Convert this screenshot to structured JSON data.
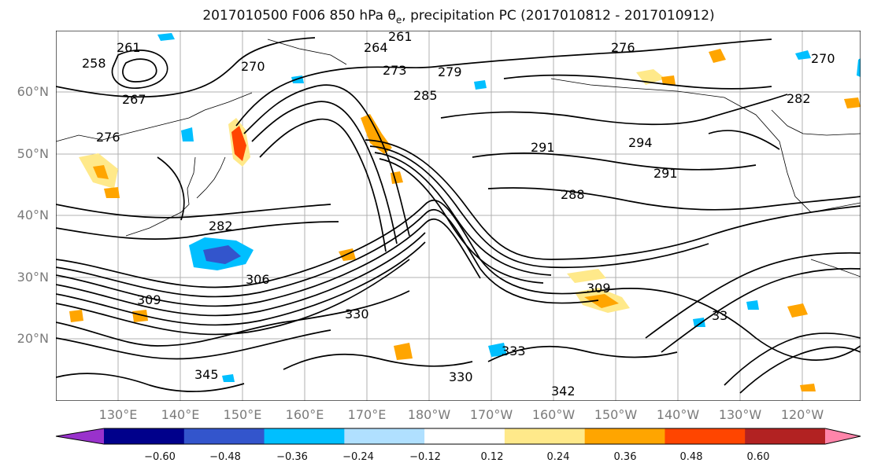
{
  "title_prefix": "2017010500 F006 850 hPa θ",
  "title_sub": "e",
  "title_suffix": ", precipitation PC (2017010812 - 2017010912)",
  "lat_labels": [
    "60°N",
    "50°N",
    "40°N",
    "30°N",
    "20°N"
  ],
  "lon_labels": [
    "130°E",
    "140°E",
    "150°E",
    "160°E",
    "170°E",
    "180°W",
    "170°W",
    "160°W",
    "150°W",
    "140°W",
    "130°W",
    "120°W"
  ],
  "contour_labels": [
    "261",
    "264",
    "261",
    "276",
    "258",
    "270",
    "273",
    "279",
    "285",
    "270",
    "267",
    "276",
    "282",
    "291",
    "294",
    "291",
    "288",
    "282",
    "306",
    "309",
    "330",
    "333",
    "309",
    "345",
    "342",
    "33",
    "330"
  ],
  "colorbar": {
    "ticks": [
      "−0.60",
      "−0.48",
      "−0.36",
      "−0.24",
      "−0.12",
      "0.12",
      "0.24",
      "0.36",
      "0.48",
      "0.60"
    ],
    "colors": [
      "#9932cc",
      "#00008b",
      "#3355cc",
      "#00bfff",
      "#b0e0ff",
      "#ffffff",
      "#ffe98a",
      "#ffa500",
      "#ff4500",
      "#b22222",
      "#ff85aa"
    ]
  },
  "colors": {
    "land_outline": "#000000",
    "grid": "#b0b0b0",
    "axis_text": "#7a7a7a",
    "positive_precip": "#ffa500",
    "negative_precip": "#00bfff"
  }
}
